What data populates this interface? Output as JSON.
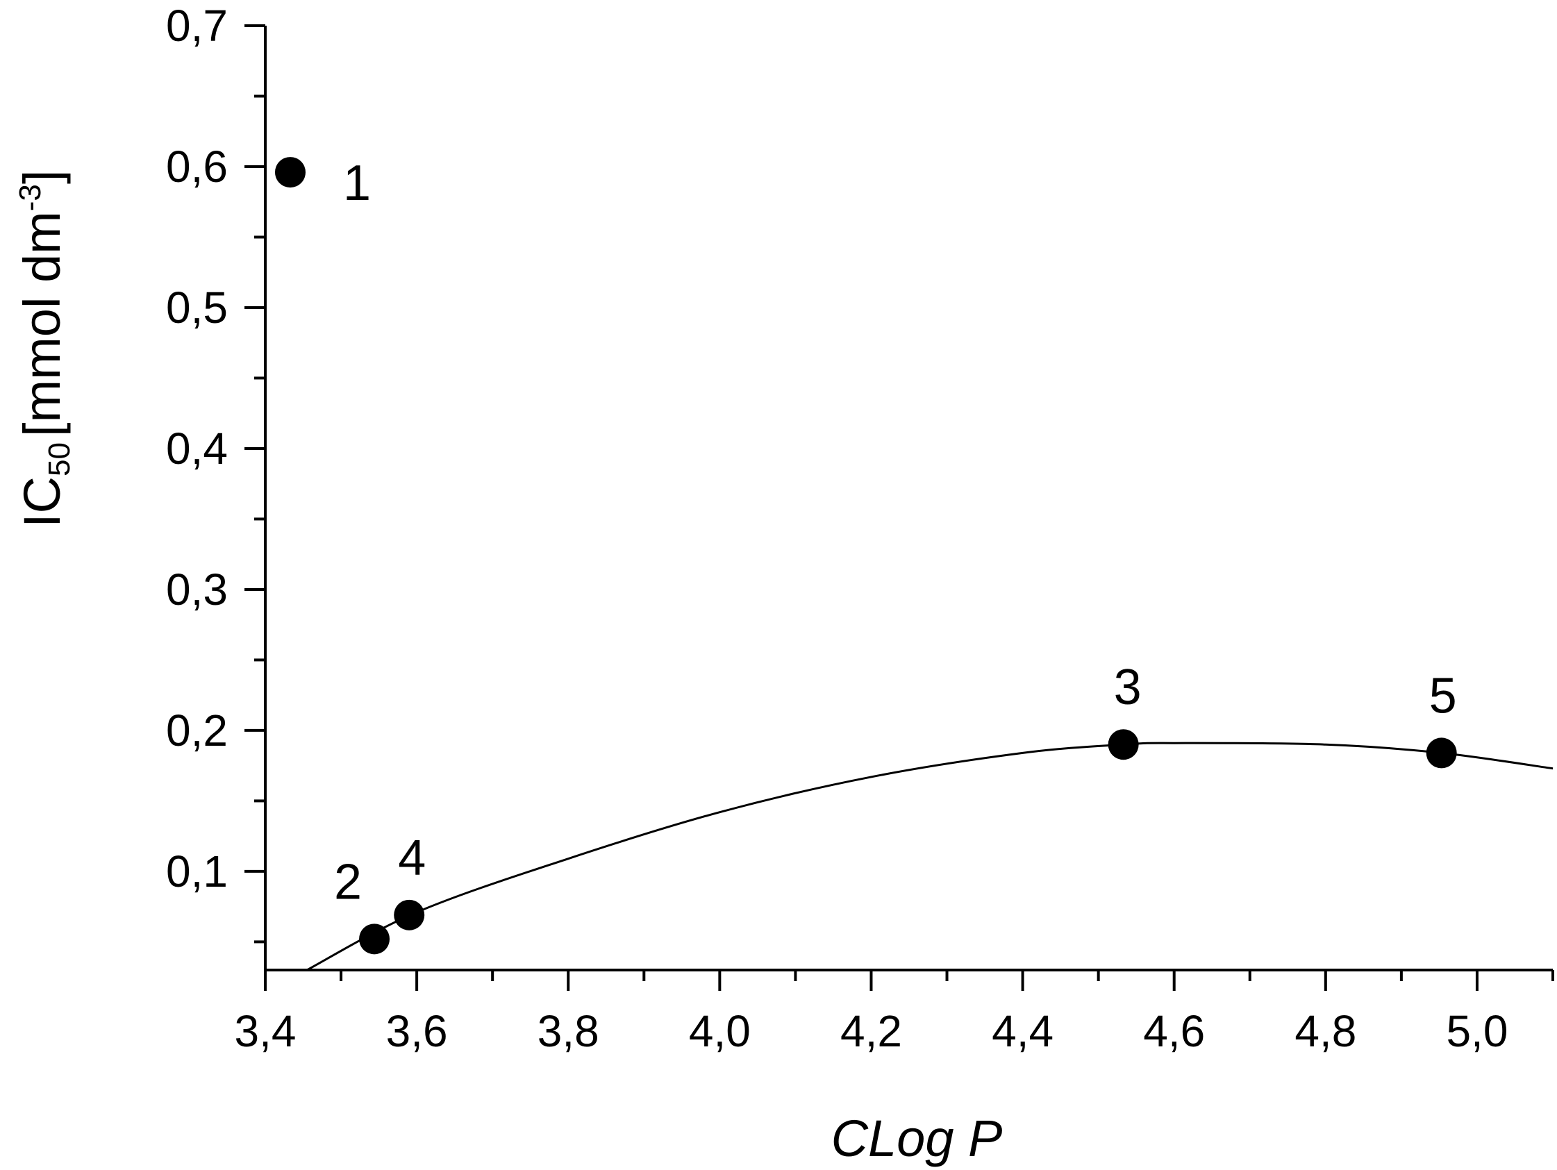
{
  "chart_data": {
    "type": "scatter",
    "xlabel": "CLog P",
    "ylabel_main": "IC",
    "ylabel_sub": "50",
    "ylabel_unit": "[mmol dm",
    "ylabel_sup": "-3",
    "ylabel_close": "]",
    "xlim": [
      3.4,
      5.1
    ],
    "ylim": [
      0.03,
      0.7
    ],
    "x_ticks": [
      3.4,
      3.6,
      3.8,
      4.0,
      4.2,
      4.4,
      4.6,
      4.8,
      5.0
    ],
    "x_tick_labels": [
      "3,4",
      "3,6",
      "3,8",
      "4,0",
      "4,2",
      "4,4",
      "4,6",
      "4,8",
      "5,0"
    ],
    "y_ticks": [
      0.1,
      0.2,
      0.3,
      0.4,
      0.5,
      0.6,
      0.7
    ],
    "y_tick_labels": [
      "0,1",
      "0,2",
      "0,3",
      "0,4",
      "0,5",
      "0,6",
      "0,7"
    ],
    "grid": false,
    "points": [
      {
        "label": "1",
        "x": 3.433,
        "y": 0.596
      },
      {
        "label": "2",
        "x": 3.544,
        "y": 0.052
      },
      {
        "label": "4",
        "x": 3.59,
        "y": 0.069
      },
      {
        "label": "3",
        "x": 4.533,
        "y": 0.19
      },
      {
        "label": "5",
        "x": 4.953,
        "y": 0.184
      }
    ],
    "fit_curve": {
      "type": "quadratic",
      "x": [
        3.455,
        3.6,
        3.8,
        4.0,
        4.2,
        4.4,
        4.533,
        4.6,
        4.8,
        4.953,
        5.1
      ],
      "y": [
        0.03,
        0.071,
        0.109,
        0.142,
        0.167,
        0.184,
        0.19,
        0.191,
        0.19,
        0.184,
        0.173
      ]
    },
    "colors": {
      "points": "#000000",
      "line": "#000000",
      "axis": "#000000"
    }
  }
}
